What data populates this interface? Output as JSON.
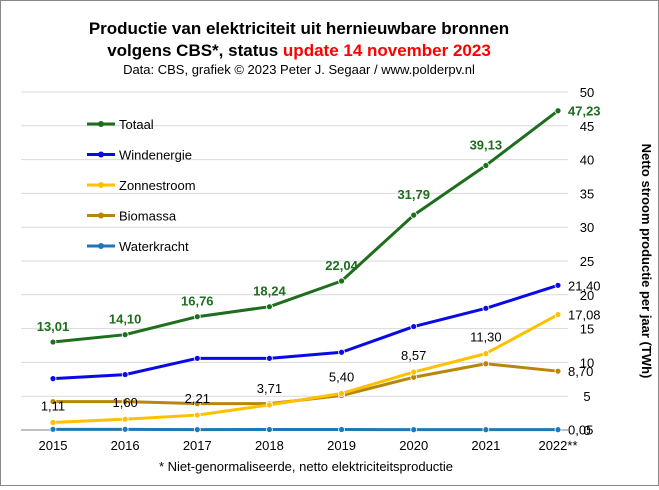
{
  "title": {
    "line1": "Productie van elektriciteit  uit hernieuwbare bronnen",
    "line2_prefix": "volgens CBS*, status ",
    "line2_highlight": "update 14 november 2023",
    "source": "Data: CBS, grafiek © 2023 Peter J. Segaar / www.polderpv.nl"
  },
  "footnote": "* Niet-genormaliseerde,  netto elektriciteitsproductie",
  "colors": {
    "highlight": "#ff0000",
    "grid": "#d9d9d9",
    "axis": "#000000"
  },
  "chart_data": {
    "type": "line",
    "categories": [
      "2015",
      "2016",
      "2017",
      "2018",
      "2019",
      "2020",
      "2021",
      "2022**"
    ],
    "ylabel": "Netto stroom productie per jaar (TWh)",
    "y_axis_side": "right",
    "ylim": [
      0,
      50
    ],
    "yticks": [
      0,
      5,
      10,
      15,
      20,
      25,
      30,
      35,
      40,
      45,
      50
    ],
    "grid": "horizontal",
    "legend_position": "top-left",
    "series": [
      {
        "name": "Totaal",
        "color": "#1e6e1e",
        "values": [
          13.01,
          14.1,
          16.76,
          18.24,
          22.04,
          31.79,
          39.13,
          47.23
        ],
        "labels": [
          "13,01",
          "14,10",
          "16,76",
          "18,24",
          "22,04",
          "31,79",
          "39,13",
          "47,23"
        ],
        "label_color": "#1e6e1e"
      },
      {
        "name": "Windenergie",
        "color": "#0a0ae6",
        "values": [
          7.6,
          8.2,
          10.6,
          10.6,
          11.5,
          15.3,
          18.0,
          21.4
        ],
        "labels": [
          "",
          "",
          "",
          "",
          "",
          "",
          "",
          "21,40"
        ],
        "label_color": "#000000"
      },
      {
        "name": "Zonnestroom",
        "color": "#ffc000",
        "values": [
          1.11,
          1.6,
          2.21,
          3.71,
          5.4,
          8.57,
          11.3,
          17.08
        ],
        "labels": [
          "1,11",
          "1,60",
          "2,21",
          "3,71",
          "5,40",
          "8,57",
          "11,30",
          "17,08"
        ],
        "label_color": "#000000"
      },
      {
        "name": "Biomassa",
        "color": "#b8860b",
        "values": [
          4.2,
          4.2,
          3.9,
          3.9,
          5.1,
          7.8,
          9.8,
          8.7
        ],
        "labels": [
          "",
          "",
          "",
          "",
          "",
          "",
          "",
          "8,70"
        ],
        "label_color": "#000000"
      },
      {
        "name": "Waterkracht",
        "color": "#1f77b4",
        "values": [
          0.1,
          0.1,
          0.06,
          0.07,
          0.07,
          0.05,
          0.05,
          0.05
        ],
        "labels": [
          "",
          "",
          "",
          "",
          "",
          "",
          "",
          "0,05"
        ],
        "label_color": "#000000"
      }
    ]
  }
}
